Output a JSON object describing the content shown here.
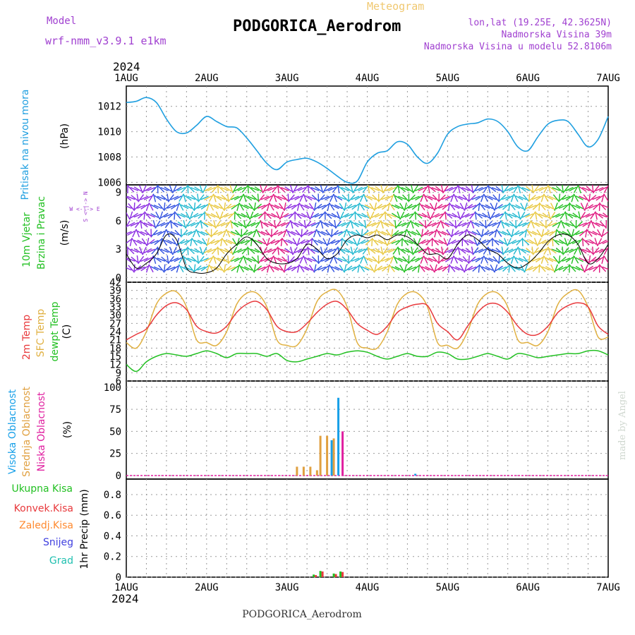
{
  "header": {
    "meteogram_label": "Meteogram",
    "model_label": "Model",
    "model_name": "wrf-nmm_v3.9.1 e1km",
    "station_title": "PODGORICA_Aerodrom",
    "coords": "lon,lat (19.25E, 42.3625N)",
    "elevation": "Nadmorska Visina 39m",
    "model_elevation": "Nadmorska Visina u modelu 52.8106m",
    "year": "2024",
    "footer_title": "PODGORICA_Aerodrom",
    "credit": "made by Angel"
  },
  "colors": {
    "pressure": "#1f9fe0",
    "temp2m": "#e8393c",
    "sfc_temp": "#e0b040",
    "dewpt": "#22c022",
    "high_cloud": "#18a0e8",
    "mid_cloud": "#e0a040",
    "low_cloud": "#e020a0",
    "total_precip": "#22c022",
    "conv_precip": "#e8393c",
    "frozen_precip": "#ff8a30",
    "snow": "#4040e0",
    "hail": "#20c0b0",
    "title": "#a040d0"
  },
  "x_axis": {
    "ticks": [
      "1AUG",
      "2AUG",
      "3AUG",
      "4AUG",
      "5AUG",
      "6AUG",
      "7AUG"
    ]
  },
  "panels": {
    "pressure": {
      "label1": "Pritisak na nivou mora",
      "unit": "(hPa)",
      "ticks": [
        "1006",
        "1008",
        "1010",
        "1012"
      ]
    },
    "wind": {
      "label1": "10m Vjetar",
      "label2": "Brzina i Pravac",
      "unit": "(m/s)",
      "compass": "W <-|-> E",
      "compass2": "S <-|-> N",
      "ticks": [
        "0",
        "3",
        "6",
        "9"
      ]
    },
    "temp": {
      "label1": "2m Temp",
      "label2": "SFC Temp",
      "label3": "dewpt Temp",
      "unit": "(C)",
      "ticks": [
        "6",
        "9",
        "12",
        "15",
        "18",
        "21",
        "24",
        "27",
        "30",
        "33",
        "36",
        "39",
        "42"
      ]
    },
    "cloud": {
      "label1": "Visoka Oblacnost",
      "label2": "Srednja Oblacnost",
      "label3": "Niska Oblacnost",
      "unit": "(%)",
      "ticks": [
        "0",
        "25",
        "50",
        "75",
        "100"
      ]
    },
    "precip": {
      "labels": [
        "Ukupna Kisa",
        "Konvek.Kisa",
        "Zaledj.Kisa",
        "Snijeg",
        "Grad"
      ],
      "unit": "1hr Precip (mm)",
      "ticks": [
        "0",
        "0.2",
        "0.4",
        "0.6",
        "0.8"
      ]
    }
  },
  "chart_data": [
    {
      "type": "line",
      "title": "Pritisak na nivou mora",
      "ylabel": "(hPa)",
      "ylim": [
        1005.8,
        1013.6
      ],
      "x": [
        "2024-08-01T00",
        "2024-08-01T03",
        "2024-08-01T06",
        "2024-08-01T09",
        "2024-08-01T12",
        "2024-08-01T15",
        "2024-08-01T18",
        "2024-08-01T21",
        "2024-08-02T00",
        "2024-08-02T03",
        "2024-08-02T06",
        "2024-08-02T09",
        "2024-08-02T12",
        "2024-08-02T15",
        "2024-08-02T18",
        "2024-08-02T21",
        "2024-08-03T00",
        "2024-08-03T03",
        "2024-08-03T06",
        "2024-08-03T09",
        "2024-08-03T12",
        "2024-08-03T15",
        "2024-08-03T18",
        "2024-08-03T21",
        "2024-08-04T00",
        "2024-08-04T03",
        "2024-08-04T06",
        "2024-08-04T09",
        "2024-08-04T12",
        "2024-08-04T15",
        "2024-08-04T18",
        "2024-08-04T21",
        "2024-08-05T00",
        "2024-08-05T03",
        "2024-08-05T06",
        "2024-08-05T09",
        "2024-08-05T12",
        "2024-08-05T15",
        "2024-08-05T18",
        "2024-08-05T21",
        "2024-08-06T00",
        "2024-08-06T03",
        "2024-08-06T06",
        "2024-08-06T09",
        "2024-08-06T12",
        "2024-08-06T15",
        "2024-08-06T18",
        "2024-08-06T21",
        "2024-08-07T00"
      ],
      "series": [
        {
          "name": "Pritisak na nivou mora",
          "values": [
            1012.3,
            1012.4,
            1012.7,
            1012.3,
            1011,
            1010,
            1009.9,
            1010.5,
            1011.2,
            1010.8,
            1010.4,
            1010.3,
            1009.5,
            1008.5,
            1007.5,
            1007,
            1007.6,
            1007.8,
            1007.9,
            1007.6,
            1007.1,
            1006.5,
            1006,
            1006.1,
            1007.6,
            1008.3,
            1008.5,
            1009.2,
            1009,
            1008,
            1007.5,
            1008.3,
            1009.8,
            1010.4,
            1010.6,
            1010.7,
            1011,
            1010.8,
            1010,
            1008.8,
            1008.5,
            1009.6,
            1010.6,
            1010.9,
            1010.8,
            1009.8,
            1008.8,
            1009.4,
            1011.2
          ]
        }
      ]
    },
    {
      "type": "line",
      "title": "10m Vjetar Brzina i Pravac",
      "ylabel": "(m/s)",
      "ylim": [
        -0.5,
        9.8
      ],
      "x": [
        "2024-08-01T00",
        "2024-08-01T03",
        "2024-08-01T06",
        "2024-08-01T09",
        "2024-08-01T12",
        "2024-08-01T15",
        "2024-08-01T18",
        "2024-08-01T21",
        "2024-08-02T00",
        "2024-08-02T03",
        "2024-08-02T06",
        "2024-08-02T09",
        "2024-08-02T12",
        "2024-08-02T15",
        "2024-08-02T18",
        "2024-08-02T21",
        "2024-08-03T00",
        "2024-08-03T03",
        "2024-08-03T06",
        "2024-08-03T09",
        "2024-08-03T12",
        "2024-08-03T15",
        "2024-08-03T18",
        "2024-08-03T21",
        "2024-08-04T00",
        "2024-08-04T03",
        "2024-08-04T06",
        "2024-08-04T09",
        "2024-08-04T12",
        "2024-08-04T15",
        "2024-08-04T18",
        "2024-08-04T21",
        "2024-08-05T00",
        "2024-08-05T03",
        "2024-08-05T06",
        "2024-08-05T09",
        "2024-08-05T12",
        "2024-08-05T15",
        "2024-08-05T18",
        "2024-08-05T21",
        "2024-08-06T00",
        "2024-08-06T03",
        "2024-08-06T06",
        "2024-08-06T09",
        "2024-08-06T12",
        "2024-08-06T15",
        "2024-08-06T18",
        "2024-08-06T21",
        "2024-08-07T00"
      ],
      "series": [
        {
          "name": "Brzina",
          "values": [
            2.5,
            1,
            1.5,
            2.5,
            4.5,
            4,
            1,
            0.5,
            0.5,
            1,
            2.5,
            3.5,
            4.3,
            3.5,
            2,
            1.5,
            1.5,
            2,
            3.5,
            3,
            2,
            2.5,
            4,
            4.5,
            4.2,
            4.5,
            4,
            4.5,
            4.3,
            3.5,
            2.5,
            2.5,
            2,
            3.5,
            4.5,
            4,
            3,
            2.5,
            1.5,
            1,
            1.5,
            2.5,
            3.8,
            4.5,
            4.5,
            3.5,
            1.5,
            2,
            3.5
          ]
        }
      ]
    },
    {
      "type": "line",
      "title": "2m Temp / SFC Temp / dewpt Temp",
      "ylabel": "(C)",
      "ylim": [
        6,
        42
      ],
      "x": [
        "2024-08-01T00",
        "2024-08-01T03",
        "2024-08-01T06",
        "2024-08-01T09",
        "2024-08-01T12",
        "2024-08-01T15",
        "2024-08-01T18",
        "2024-08-01T21",
        "2024-08-02T00",
        "2024-08-02T03",
        "2024-08-02T06",
        "2024-08-02T09",
        "2024-08-02T12",
        "2024-08-02T15",
        "2024-08-02T18",
        "2024-08-02T21",
        "2024-08-03T00",
        "2024-08-03T03",
        "2024-08-03T06",
        "2024-08-03T09",
        "2024-08-03T12",
        "2024-08-03T15",
        "2024-08-03T18",
        "2024-08-03T21",
        "2024-08-04T00",
        "2024-08-04T03",
        "2024-08-04T06",
        "2024-08-04T09",
        "2024-08-04T12",
        "2024-08-04T15",
        "2024-08-04T18",
        "2024-08-04T21",
        "2024-08-05T00",
        "2024-08-05T03",
        "2024-08-05T06",
        "2024-08-05T09",
        "2024-08-05T12",
        "2024-08-05T15",
        "2024-08-05T18",
        "2024-08-05T21",
        "2024-08-06T00",
        "2024-08-06T03",
        "2024-08-06T06",
        "2024-08-06T09",
        "2024-08-06T12",
        "2024-08-06T15",
        "2024-08-06T18",
        "2024-08-06T21",
        "2024-08-07T00"
      ],
      "series": [
        {
          "name": "2m Temp",
          "values": [
            21,
            23,
            25,
            30,
            33.5,
            34.5,
            32,
            26,
            24,
            23.5,
            26,
            31,
            34,
            35,
            32,
            26,
            24,
            24,
            27,
            31,
            34,
            35,
            32,
            27,
            24.5,
            23,
            26,
            31,
            33,
            34,
            33.5,
            27,
            24,
            21,
            26,
            31,
            34,
            34,
            31,
            26,
            23,
            23,
            26,
            31,
            33.5,
            34.5,
            33,
            26,
            23
          ]
        },
        {
          "name": "SFC Temp",
          "values": [
            20,
            18,
            24,
            34,
            38,
            38.5,
            33,
            21,
            20,
            19,
            24,
            34,
            38,
            38,
            33,
            21,
            19,
            19,
            25,
            35,
            38.5,
            39,
            33,
            20,
            18,
            18,
            24,
            34,
            38,
            38,
            33,
            20,
            19,
            18,
            24,
            34,
            38,
            38,
            33,
            21,
            20,
            19,
            24,
            34,
            38,
            39,
            33,
            22,
            22
          ]
        },
        {
          "name": "dewpt Temp",
          "values": [
            12,
            9.5,
            13,
            15,
            16,
            15.5,
            15,
            16,
            17,
            16,
            14.5,
            16,
            16,
            16,
            15,
            16,
            13.5,
            13,
            14,
            15,
            16,
            15.5,
            16.5,
            17,
            16.5,
            15,
            14,
            15,
            16,
            15,
            15,
            16.5,
            16,
            14,
            14,
            15,
            16,
            15,
            14,
            16,
            15.5,
            14.5,
            15,
            15.5,
            16,
            16,
            17,
            17,
            15.5
          ]
        }
      ]
    },
    {
      "type": "bar",
      "title": "Visoka / Srednja / Niska Oblacnost",
      "ylabel": "(%)",
      "ylim": [
        -4,
        107
      ],
      "x": [
        "2024-08-03T03",
        "2024-08-03T05",
        "2024-08-03T07",
        "2024-08-03T09",
        "2024-08-03T10",
        "2024-08-03T12",
        "2024-08-03T14",
        "2024-08-03T16",
        "2024-08-04T15"
      ],
      "series": [
        {
          "name": "Visoka Oblacnost",
          "values": [
            0,
            0,
            0,
            0,
            0,
            0,
            40,
            88,
            2
          ]
        },
        {
          "name": "Srednja Oblacnost",
          "values": [
            10,
            10,
            10,
            6,
            45,
            45,
            42,
            0,
            0
          ]
        },
        {
          "name": "Niska Oblacnost",
          "values": [
            0,
            0,
            0,
            0,
            0,
            0,
            0,
            50,
            0
          ]
        }
      ]
    },
    {
      "type": "bar",
      "title": "1hr Precip",
      "ylabel": "1hr Precip (mm)",
      "ylim": [
        0,
        0.95
      ],
      "x": [
        "2024-08-03T08",
        "2024-08-03T10",
        "2024-08-03T14",
        "2024-08-03T16"
      ],
      "series": [
        {
          "name": "Ukupna Kisa",
          "values": [
            0.025,
            0.06,
            0.035,
            0.055
          ]
        },
        {
          "name": "Konvek.Kisa",
          "values": [
            0.02,
            0.055,
            0.03,
            0.05
          ]
        }
      ]
    }
  ]
}
